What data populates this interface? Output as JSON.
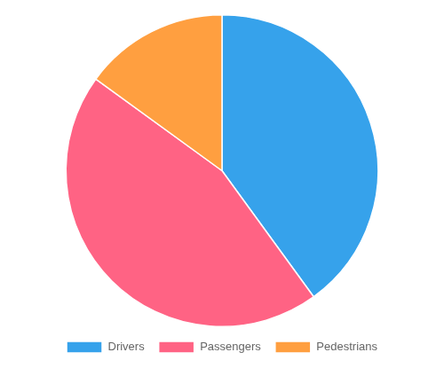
{
  "chart_data": {
    "type": "pie",
    "categories": [
      "Drivers",
      "Passengers",
      "Pedestrians"
    ],
    "values": [
      40,
      45,
      15
    ],
    "legend": "bottom"
  }
}
